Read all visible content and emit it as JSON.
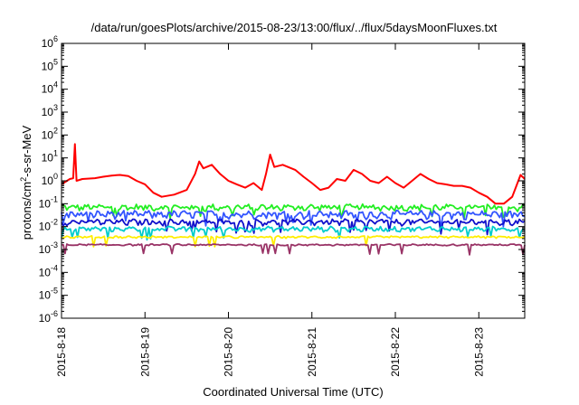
{
  "chart_data": {
    "type": "line",
    "title": "/data/run/goesPlots/archive/2015-08-23/13:00/flux/../flux/5daysMoonFluxes.txt",
    "xlabel": "Coordinated Universal Time (UTC)",
    "ylabel": {
      "prefix": "protons/cm",
      "sup": "2",
      "suffix": "-s-sr-MeV"
    },
    "yscale": "log",
    "ylim_exp": [
      -6,
      6
    ],
    "yticks": [
      {
        "base": "10",
        "exp": "6"
      },
      {
        "base": "10",
        "exp": "5"
      },
      {
        "base": "10",
        "exp": "4"
      },
      {
        "base": "10",
        "exp": "3"
      },
      {
        "base": "10",
        "exp": "2"
      },
      {
        "base": "10",
        "exp": "1"
      },
      {
        "base": "10",
        "exp": "0"
      },
      {
        "base": "10",
        "exp": "-1"
      },
      {
        "base": "10",
        "exp": "-2"
      },
      {
        "base": "10",
        "exp": "-3"
      },
      {
        "base": "10",
        "exp": "-4"
      },
      {
        "base": "10",
        "exp": "-5"
      },
      {
        "base": "10",
        "exp": "-6"
      }
    ],
    "xlim_days": [
      0,
      5.55
    ],
    "xticks": [
      "2015-8-18",
      "2015-8-19",
      "2015-8-20",
      "2015-8-21",
      "2015-8-22",
      "2015-8-23"
    ],
    "grid": false,
    "series": [
      {
        "color": "#ff0000",
        "points": [
          [
            0,
            0.7
          ],
          [
            0.1,
            1.2
          ],
          [
            0.14,
            1.3
          ],
          [
            0.16,
            40
          ],
          [
            0.18,
            1.0
          ],
          [
            0.25,
            1.2
          ],
          [
            0.4,
            1.3
          ],
          [
            0.5,
            1.5
          ],
          [
            0.6,
            1.7
          ],
          [
            0.7,
            1.8
          ],
          [
            0.8,
            1.6
          ],
          [
            0.9,
            1.0
          ],
          [
            1.0,
            0.7
          ],
          [
            1.1,
            0.3
          ],
          [
            1.2,
            0.2
          ],
          [
            1.35,
            0.25
          ],
          [
            1.5,
            0.4
          ],
          [
            1.6,
            2.0
          ],
          [
            1.65,
            7.0
          ],
          [
            1.7,
            3.5
          ],
          [
            1.8,
            5.0
          ],
          [
            1.9,
            2.0
          ],
          [
            2.0,
            1.0
          ],
          [
            2.1,
            0.7
          ],
          [
            2.2,
            0.5
          ],
          [
            2.3,
            0.8
          ],
          [
            2.4,
            0.4
          ],
          [
            2.45,
            2.0
          ],
          [
            2.5,
            14
          ],
          [
            2.55,
            4.0
          ],
          [
            2.65,
            5.0
          ],
          [
            2.8,
            3.0
          ],
          [
            2.9,
            1.5
          ],
          [
            3.0,
            0.8
          ],
          [
            3.1,
            0.4
          ],
          [
            3.2,
            0.5
          ],
          [
            3.3,
            1.2
          ],
          [
            3.4,
            1.0
          ],
          [
            3.5,
            3.0
          ],
          [
            3.6,
            2.0
          ],
          [
            3.7,
            1.0
          ],
          [
            3.8,
            0.8
          ],
          [
            3.9,
            1.5
          ],
          [
            4.0,
            0.8
          ],
          [
            4.1,
            0.5
          ],
          [
            4.2,
            1.0
          ],
          [
            4.3,
            2.0
          ],
          [
            4.4,
            1.2
          ],
          [
            4.5,
            0.8
          ],
          [
            4.6,
            0.7
          ],
          [
            4.7,
            0.6
          ],
          [
            4.8,
            0.6
          ],
          [
            4.9,
            0.5
          ],
          [
            5.0,
            0.3
          ],
          [
            5.1,
            0.2
          ],
          [
            5.2,
            0.1
          ],
          [
            5.3,
            0.1
          ],
          [
            5.4,
            0.2
          ],
          [
            5.45,
            0.6
          ],
          [
            5.5,
            1.8
          ],
          [
            5.55,
            1.2
          ]
        ]
      },
      {
        "color": "#22ee22",
        "base": 0.07,
        "jitter": 0.25
      },
      {
        "color": "#3355ff",
        "base": 0.035,
        "jitter": 0.28
      },
      {
        "color": "#1111cc",
        "base": 0.016,
        "jitter": 0.22
      },
      {
        "color": "#00cccc",
        "base": 0.008,
        "jitter": 0.18
      },
      {
        "color": "#ffee00",
        "base": 0.0035,
        "jitter": 0.08
      },
      {
        "color": "#993366",
        "base": 0.0016,
        "jitter": 0.06
      }
    ]
  }
}
